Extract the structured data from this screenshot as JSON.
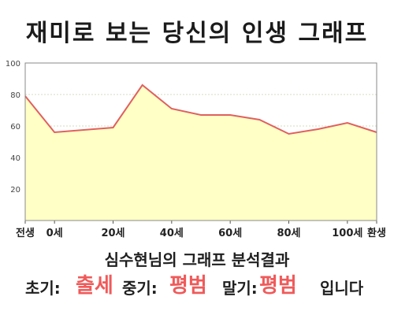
{
  "title": "재미로 보는 당신의 인생 그래프",
  "chart_data": {
    "type": "area",
    "x": [
      -10,
      0,
      20,
      30,
      40,
      50,
      60,
      70,
      80,
      90,
      100,
      110
    ],
    "y": [
      79,
      56,
      59,
      86,
      71,
      67,
      67,
      64,
      55,
      58,
      62,
      56
    ],
    "xlim": [
      -10,
      110
    ],
    "ylim": [
      0,
      100
    ],
    "yticks": [
      20,
      40,
      60,
      80,
      100
    ],
    "xtick_values": [
      -10,
      0,
      20,
      40,
      60,
      80,
      100,
      110
    ],
    "xtick_labels": [
      "전생",
      "0세",
      "20세",
      "40세",
      "60세",
      "80세",
      "100세",
      "환생"
    ],
    "line_color": "#e06060",
    "fill_color": "#ffffc6",
    "grid": true
  },
  "subtitle": "심수현님의 그래프 분석결과",
  "result": {
    "early_label": "초기:",
    "early_value": "출세",
    "mid_label": "중기:",
    "mid_value": "평범",
    "late_label": "말기:",
    "late_value": "평범",
    "suffix": "입니다"
  },
  "colors": {
    "highlight": "#f05a5a",
    "grid": "#cccccc",
    "axis": "#555555"
  }
}
